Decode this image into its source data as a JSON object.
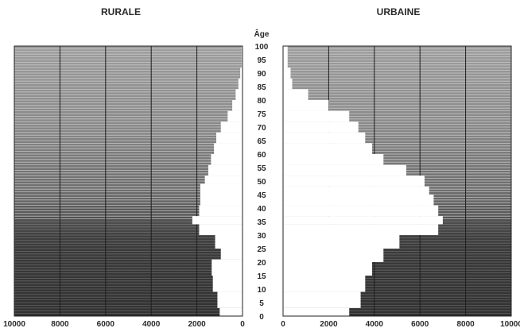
{
  "chart_data": [
    {
      "type": "bar",
      "orientation": "horizontal",
      "title": "RURALE",
      "ylabel": "Âge",
      "age_ticks": [
        "0",
        "5",
        "10",
        "15",
        "20",
        "25",
        "30",
        "35",
        "40",
        "45",
        "50",
        "55",
        "60",
        "65",
        "70",
        "75",
        "80",
        "85",
        "90",
        "95",
        "100"
      ],
      "x_ticks": [
        "10000",
        "8000",
        "6000",
        "4000",
        "2000",
        "0"
      ],
      "xlim": [
        0,
        10000
      ],
      "x_reversed": true,
      "age_bands": [
        {
          "from": 0,
          "to": 3,
          "value": 1000
        },
        {
          "from": 3,
          "to": 9,
          "value": 1100
        },
        {
          "from": 9,
          "to": 15,
          "value": 1300
        },
        {
          "from": 15,
          "to": 21,
          "value": 1350
        },
        {
          "from": 21,
          "to": 25,
          "value": 950
        },
        {
          "from": 25,
          "to": 30,
          "value": 1200
        },
        {
          "from": 30,
          "to": 34,
          "value": 1900
        },
        {
          "from": 34,
          "to": 37,
          "value": 2200
        },
        {
          "from": 37,
          "to": 41,
          "value": 1900
        },
        {
          "from": 41,
          "to": 49,
          "value": 1850
        },
        {
          "from": 49,
          "to": 52,
          "value": 1650
        },
        {
          "from": 52,
          "to": 56,
          "value": 1500
        },
        {
          "from": 56,
          "to": 60,
          "value": 1380
        },
        {
          "from": 60,
          "to": 64,
          "value": 1250
        },
        {
          "from": 64,
          "to": 68,
          "value": 1150
        },
        {
          "from": 68,
          "to": 72,
          "value": 950
        },
        {
          "from": 72,
          "to": 76,
          "value": 650
        },
        {
          "from": 76,
          "to": 80,
          "value": 450
        },
        {
          "from": 80,
          "to": 84,
          "value": 300
        },
        {
          "from": 84,
          "to": 88,
          "value": 180
        },
        {
          "from": 88,
          "to": 92,
          "value": 100
        },
        {
          "from": 92,
          "to": 100,
          "value": 40
        }
      ]
    },
    {
      "type": "bar",
      "orientation": "horizontal",
      "title": "URBAINE",
      "ylabel": "Âge",
      "age_ticks": [
        "0",
        "5",
        "10",
        "15",
        "20",
        "25",
        "30",
        "35",
        "40",
        "45",
        "50",
        "55",
        "60",
        "65",
        "70",
        "75",
        "80",
        "85",
        "90",
        "95",
        "100"
      ],
      "x_ticks": [
        "0",
        "2000",
        "4000",
        "6000",
        "8000",
        "10000"
      ],
      "xlim": [
        0,
        10000
      ],
      "x_reversed": false,
      "age_bands": [
        {
          "from": 0,
          "to": 3,
          "value": 2900
        },
        {
          "from": 3,
          "to": 9,
          "value": 3400
        },
        {
          "from": 9,
          "to": 15,
          "value": 3600
        },
        {
          "from": 15,
          "to": 20,
          "value": 3900
        },
        {
          "from": 20,
          "to": 25,
          "value": 4400
        },
        {
          "from": 25,
          "to": 30,
          "value": 5100
        },
        {
          "from": 30,
          "to": 34,
          "value": 6800
        },
        {
          "from": 34,
          "to": 37,
          "value": 7000
        },
        {
          "from": 37,
          "to": 41,
          "value": 6800
        },
        {
          "from": 41,
          "to": 45,
          "value": 6600
        },
        {
          "from": 45,
          "to": 48,
          "value": 6400
        },
        {
          "from": 48,
          "to": 52,
          "value": 6200
        },
        {
          "from": 52,
          "to": 56,
          "value": 5400
        },
        {
          "from": 56,
          "to": 60,
          "value": 4400
        },
        {
          "from": 60,
          "to": 64,
          "value": 3900
        },
        {
          "from": 64,
          "to": 68,
          "value": 3600
        },
        {
          "from": 68,
          "to": 72,
          "value": 3300
        },
        {
          "from": 72,
          "to": 76,
          "value": 2900
        },
        {
          "from": 76,
          "to": 80,
          "value": 2000
        },
        {
          "from": 80,
          "to": 84,
          "value": 1100
        },
        {
          "from": 84,
          "to": 88,
          "value": 400
        },
        {
          "from": 88,
          "to": 92,
          "value": 330
        },
        {
          "from": 92,
          "to": 100,
          "value": 200
        }
      ]
    }
  ]
}
